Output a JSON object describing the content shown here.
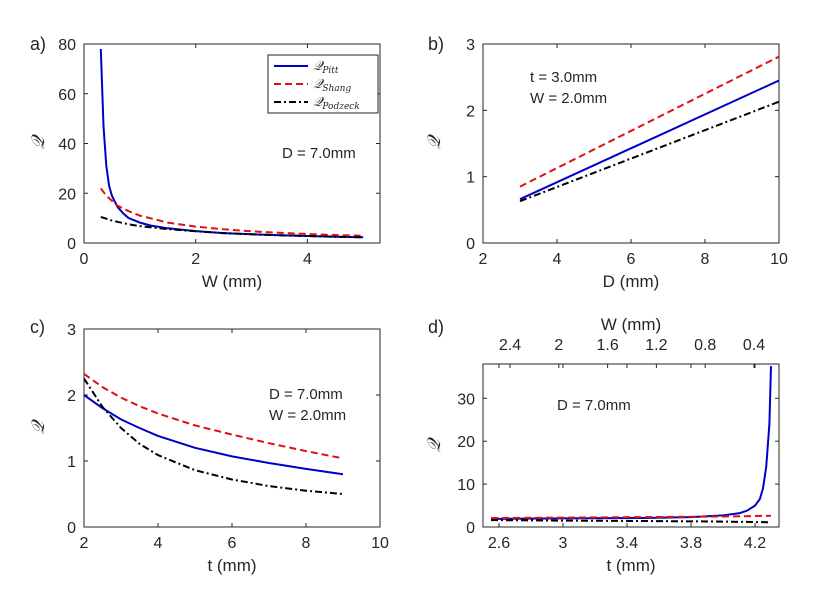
{
  "chart_data": [
    {
      "panel": "a)",
      "type": "line",
      "xlabel": "W (mm)",
      "ylabel": "𝒬",
      "xlim": [
        0,
        5.3
      ],
      "ylim": [
        0,
        80
      ],
      "xticks": [
        0,
        2,
        4
      ],
      "yticks": [
        0,
        20,
        40,
        60,
        80
      ],
      "annotations": [
        "D = 7.0mm"
      ],
      "legend_position": "top-right",
      "series": [
        {
          "name": "𝒬Pitt",
          "legend_main": "𝒬",
          "legend_sub": "Pitt",
          "color": "#0000cc",
          "dash": "solid",
          "x": [
            0.3,
            0.35,
            0.4,
            0.45,
            0.5,
            0.6,
            0.7,
            0.8,
            1.0,
            1.2,
            1.5,
            2.0,
            2.5,
            3.0,
            3.5,
            4.0,
            4.5,
            5.0
          ],
          "y": [
            78,
            47,
            31,
            23,
            19,
            14.5,
            12,
            10,
            8.2,
            7.0,
            5.9,
            4.8,
            4.0,
            3.5,
            3.1,
            2.8,
            2.55,
            2.3
          ]
        },
        {
          "name": "𝒬Shang",
          "legend_main": "𝒬",
          "legend_sub": "Shang",
          "color": "#e01010",
          "dash": "dashed",
          "x": [
            0.3,
            0.4,
            0.5,
            0.6,
            0.8,
            1.0,
            1.5,
            2.0,
            2.5,
            3.0,
            3.5,
            4.0,
            4.5,
            5.0
          ],
          "y": [
            22,
            19,
            17,
            15,
            12.8,
            11,
            8.2,
            6.6,
            5.5,
            4.7,
            4.1,
            3.6,
            3.2,
            2.9
          ]
        },
        {
          "name": "𝒬Podzeck",
          "legend_main": "𝒬",
          "legend_sub": "Podzeck",
          "color": "#000000",
          "dash": "dashdot",
          "x": [
            0.3,
            0.5,
            0.8,
            1.0,
            1.5,
            2.0,
            2.5,
            3.0,
            3.5,
            4.0,
            4.5,
            5.0
          ],
          "y": [
            10.5,
            9.0,
            7.5,
            6.8,
            5.6,
            4.7,
            4.0,
            3.5,
            3.1,
            2.8,
            2.5,
            2.3
          ]
        }
      ]
    },
    {
      "panel": "b)",
      "type": "line",
      "xlabel": "D (mm)",
      "ylabel": "𝒬",
      "xlim": [
        2,
        10
      ],
      "ylim": [
        0,
        3
      ],
      "xticks": [
        2,
        4,
        6,
        8,
        10
      ],
      "yticks": [
        0,
        1,
        2,
        3
      ],
      "annotations": [
        "t = 3.0mm",
        "W = 2.0mm"
      ],
      "series": [
        {
          "name": "𝒬Pitt",
          "color": "#0000cc",
          "dash": "solid",
          "x": [
            3,
            10
          ],
          "y": [
            0.66,
            2.45
          ]
        },
        {
          "name": "𝒬Shang",
          "color": "#e01010",
          "dash": "dashed",
          "x": [
            3,
            10
          ],
          "y": [
            0.85,
            2.81
          ]
        },
        {
          "name": "𝒬Podzeck",
          "color": "#000000",
          "dash": "dashdot",
          "x": [
            3,
            10
          ],
          "y": [
            0.63,
            2.13
          ]
        }
      ]
    },
    {
      "panel": "c)",
      "type": "line",
      "xlabel": "t (mm)",
      "ylabel": "𝒬",
      "xlim": [
        2,
        10
      ],
      "ylim": [
        0,
        3
      ],
      "xticks": [
        2,
        4,
        6,
        8,
        10
      ],
      "yticks": [
        0,
        1,
        2,
        3
      ],
      "annotations": [
        "D = 7.0mm",
        "W = 2.0mm"
      ],
      "series": [
        {
          "name": "𝒬Pitt",
          "color": "#0000cc",
          "dash": "solid",
          "x": [
            2,
            2.5,
            3,
            3.5,
            4,
            5,
            6,
            7,
            8,
            9
          ],
          "y": [
            2.0,
            1.8,
            1.63,
            1.5,
            1.38,
            1.2,
            1.07,
            0.97,
            0.88,
            0.8
          ]
        },
        {
          "name": "𝒬Shang",
          "color": "#e01010",
          "dash": "dashed",
          "x": [
            2,
            2.5,
            3,
            3.5,
            4,
            5,
            6,
            7,
            8,
            9
          ],
          "y": [
            2.32,
            2.12,
            1.96,
            1.83,
            1.72,
            1.54,
            1.4,
            1.27,
            1.15,
            1.04
          ]
        },
        {
          "name": "𝒬Podzeck",
          "color": "#000000",
          "dash": "dashdot",
          "x": [
            2,
            2.5,
            3,
            3.5,
            4,
            5,
            6,
            7,
            8,
            9
          ],
          "y": [
            2.25,
            1.82,
            1.5,
            1.26,
            1.09,
            0.86,
            0.72,
            0.62,
            0.55,
            0.5
          ]
        }
      ]
    },
    {
      "panel": "d)",
      "type": "line",
      "xlabel": "t (mm)",
      "x2label": "W (mm)",
      "ylabel": "𝒬",
      "xlim": [
        2.5,
        4.35
      ],
      "ylim": [
        0,
        38
      ],
      "xticks": [
        2.6,
        3,
        3.4,
        3.8,
        4.2
      ],
      "yticks": [
        0,
        10,
        20,
        30
      ],
      "x2ticks": [
        "2.4",
        "2",
        "1.6",
        "1.2",
        "0.8",
        "0.4"
      ],
      "annotations": [
        "D = 7.0mm"
      ],
      "series": [
        {
          "name": "𝒬Pitt",
          "color": "#0000cc",
          "dash": "solid",
          "x": [
            2.55,
            3.0,
            3.5,
            3.8,
            4.0,
            4.1,
            4.15,
            4.2,
            4.23,
            4.25,
            4.27,
            4.29,
            4.3
          ],
          "y": [
            1.9,
            2.0,
            2.1,
            2.3,
            2.7,
            3.2,
            3.8,
            5.0,
            6.5,
            9.0,
            14,
            24,
            37.5
          ]
        },
        {
          "name": "𝒬Shang",
          "color": "#e01010",
          "dash": "dashed",
          "x": [
            2.55,
            3.0,
            3.5,
            4.0,
            4.3
          ],
          "y": [
            2.1,
            2.2,
            2.3,
            2.45,
            2.6
          ]
        },
        {
          "name": "𝒬Podzeck",
          "color": "#000000",
          "dash": "dashdot",
          "x": [
            2.55,
            3.0,
            3.5,
            4.0,
            4.3
          ],
          "y": [
            1.6,
            1.5,
            1.4,
            1.25,
            1.1
          ]
        }
      ]
    }
  ]
}
